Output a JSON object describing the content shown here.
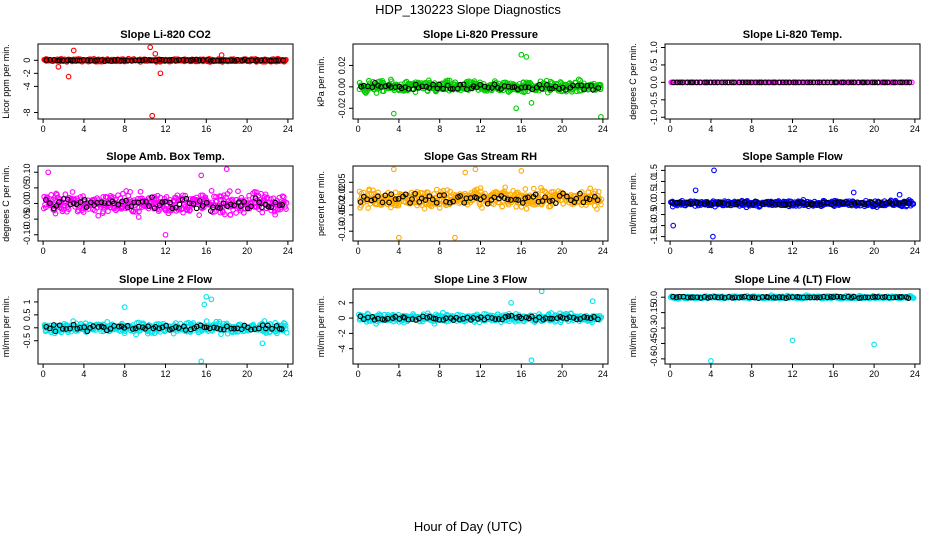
{
  "figure": {
    "title": "HDP_130223  Slope Diagnostics",
    "xlabel": "Hour of Day (UTC)"
  },
  "chart_data": [
    {
      "type": "scatter",
      "title": "Slope Li-820 CO2",
      "ylabel": "Licor ppm per min.",
      "xlim": [
        -0.5,
        24.5
      ],
      "ylim": [
        -9,
        2.5
      ],
      "xticks": [
        0,
        4,
        8,
        12,
        16,
        20,
        24
      ],
      "yticks": [
        -8,
        -4,
        -2,
        0
      ],
      "ytick_labels": [
        "-8",
        "-4",
        "-2",
        "0"
      ],
      "color": "#ff0000",
      "spread": 0.3,
      "outliers": [
        [
          10.5,
          2
        ],
        [
          11,
          1
        ],
        [
          11.5,
          -2
        ],
        [
          2.5,
          -2.5
        ],
        [
          3,
          1.5
        ],
        [
          10.7,
          -8.5
        ],
        [
          17.5,
          0.8
        ],
        [
          1.5,
          -1.0
        ]
      ]
    },
    {
      "type": "scatter",
      "title": "Slope Li-820 Pressure",
      "ylabel": "kPa per min.",
      "xlim": [
        -0.5,
        24.5
      ],
      "ylim": [
        -0.03,
        0.04
      ],
      "xticks": [
        0,
        4,
        8,
        12,
        16,
        20,
        24
      ],
      "yticks": [
        -0.02,
        0,
        0.02
      ],
      "ytick_labels": [
        "-0.02",
        "0.00",
        "0.02"
      ],
      "color": "#00cc00",
      "spread": 0.008,
      "outliers": [
        [
          16,
          0.03
        ],
        [
          16.5,
          0.028
        ],
        [
          15.5,
          -0.02
        ],
        [
          3.5,
          -0.025
        ],
        [
          23.8,
          -0.028
        ],
        [
          17,
          -0.015
        ]
      ]
    },
    {
      "type": "scatter",
      "title": "Slope Li-820 Temp.",
      "ylabel": "degrees C per min.",
      "xlim": [
        -0.5,
        24.5
      ],
      "ylim": [
        -1.05,
        1.1
      ],
      "xticks": [
        0,
        4,
        8,
        12,
        16,
        20,
        24
      ],
      "yticks": [
        -1,
        -0.5,
        0,
        0.5,
        1
      ],
      "ytick_labels": [
        "-1.0",
        "-0.5",
        "0.0",
        "0.5",
        "1.0"
      ],
      "color": "#ff00ff",
      "spread": 0.0,
      "outliers": []
    },
    {
      "type": "scatter",
      "title": "Slope Amb. Box Temp.",
      "ylabel": "degrees C per min.",
      "xlim": [
        -0.5,
        24.5
      ],
      "ylim": [
        -0.12,
        0.12
      ],
      "xticks": [
        0,
        4,
        8,
        12,
        16,
        20,
        24
      ],
      "yticks": [
        -0.1,
        -0.05,
        0,
        0.05,
        0.1
      ],
      "ytick_labels": [
        "-0.10",
        "-0.05",
        "0.00",
        "0.05",
        "0.10"
      ],
      "color": "#ff00ff",
      "spread": 0.05,
      "outliers": [
        [
          0.5,
          0.1
        ],
        [
          15.5,
          0.09
        ],
        [
          18,
          0.11
        ],
        [
          12,
          -0.1
        ]
      ]
    },
    {
      "type": "scatter",
      "title": "Slope Gas Stream RH",
      "ylabel": "percent per min.",
      "xlim": [
        -0.5,
        24.5
      ],
      "ylim": [
        -0.13,
        0.1
      ],
      "xticks": [
        0,
        4,
        8,
        12,
        16,
        20,
        24
      ],
      "yticks": [
        -0.1,
        -0.05,
        -0.02,
        0.02,
        0.05
      ],
      "ytick_labels": [
        "-0.10",
        "-0.05",
        "-0.02",
        "0.02",
        "0.05"
      ],
      "color": "#ffaa00",
      "spread": 0.04,
      "outliers": [
        [
          3.5,
          0.09
        ],
        [
          10.5,
          0.08
        ],
        [
          11.5,
          0.09
        ],
        [
          16,
          0.085
        ],
        [
          4,
          -0.12
        ],
        [
          9.5,
          -0.12
        ]
      ]
    },
    {
      "type": "scatter",
      "title": "Slope Sample Flow",
      "ylabel": "ml/min per min.",
      "xlim": [
        -0.5,
        24.5
      ],
      "ylim": [
        -1.7,
        1.7
      ],
      "xticks": [
        0,
        4,
        8,
        12,
        16,
        20,
        24
      ],
      "yticks": [
        -1.5,
        -1,
        -0.5,
        0,
        0.5,
        1,
        1.5
      ],
      "ytick_labels": [
        "-1.5",
        "-1.0",
        "-0.5",
        "0.0",
        "0.5",
        "1.0",
        "1.5"
      ],
      "color": "#0000ff",
      "spread": 0.2,
      "outliers": [
        [
          4.3,
          1.5
        ],
        [
          4.2,
          -1.5
        ],
        [
          0.3,
          -1.0
        ],
        [
          2.5,
          0.6
        ],
        [
          18,
          0.5
        ],
        [
          22.5,
          0.4
        ]
      ]
    },
    {
      "type": "scatter",
      "title": "Slope Line 2 Flow",
      "ylabel": "ml/min per min.",
      "xlim": [
        -0.5,
        24.5
      ],
      "ylim": [
        -1.4,
        1.5
      ],
      "xticks": [
        0,
        4,
        8,
        12,
        16,
        20,
        24
      ],
      "yticks": [
        -0.5,
        0,
        0.5,
        1
      ],
      "ytick_labels": [
        "-0.5",
        "0",
        "0.5",
        "1"
      ],
      "color": "#00e5ee",
      "spread": 0.3,
      "outliers": [
        [
          15.5,
          -1.3
        ],
        [
          16,
          1.2
        ],
        [
          16.5,
          1.1
        ],
        [
          15.8,
          0.9
        ],
        [
          21.5,
          -0.6
        ],
        [
          8,
          0.8
        ]
      ]
    },
    {
      "type": "scatter",
      "title": "Slope Line 3 Flow",
      "ylabel": "ml/min per min.",
      "xlim": [
        -0.5,
        24.5
      ],
      "ylim": [
        -6,
        3.8
      ],
      "xticks": [
        0,
        4,
        8,
        12,
        16,
        20,
        24
      ],
      "yticks": [
        -4,
        -2,
        0,
        2
      ],
      "ytick_labels": [
        "-4",
        "-2",
        "0",
        "2"
      ],
      "color": "#00e5ee",
      "spread": 0.8,
      "outliers": [
        [
          17,
          -5.5
        ],
        [
          18,
          3.5
        ],
        [
          23,
          2.2
        ],
        [
          15,
          2.0
        ]
      ]
    },
    {
      "type": "scatter",
      "title": "Slope Line 4 (LT) Flow",
      "ylabel": "ml/min per min.",
      "xlim": [
        -0.5,
        24.5
      ],
      "ylim": [
        -0.65,
        0.08
      ],
      "xticks": [
        0,
        4,
        8,
        12,
        16,
        20,
        24
      ],
      "yticks": [
        -0.6,
        -0.45,
        -0.3,
        -0.15,
        0
      ],
      "ytick_labels": [
        "-0.6",
        "-0.45",
        "-0.3",
        "-0.15",
        "0.0"
      ],
      "color": "#00e5ee",
      "spread": 0.02,
      "outliers": [
        [
          4,
          -0.62
        ],
        [
          12,
          -0.42
        ],
        [
          20,
          -0.46
        ]
      ]
    }
  ]
}
